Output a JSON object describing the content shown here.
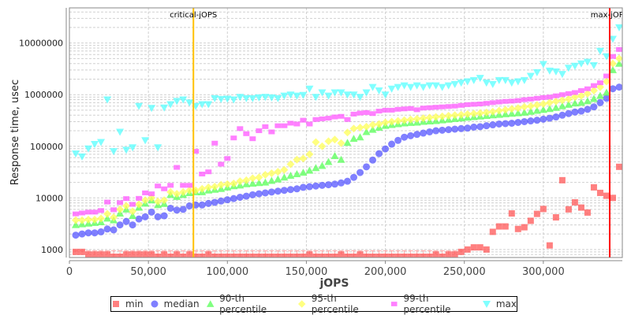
{
  "chart_data": {
    "type": "scatter",
    "xlabel": "jOPS",
    "ylabel": "Response time, usec",
    "xlim": [
      0,
      350000
    ],
    "ylim": [
      700,
      48000000
    ],
    "y_scale": "log",
    "grid": true,
    "legend_position": "bottom",
    "x_ticks": [
      "0",
      "50,000",
      "100,000",
      "150,000",
      "200,000",
      "250,000",
      "300,000"
    ],
    "x_tick_values": [
      0,
      50000,
      100000,
      150000,
      200000,
      250000,
      300000
    ],
    "y_ticks": [
      "1000",
      "10000",
      "100000",
      "1000000",
      "10000000"
    ],
    "y_tick_values": [
      1000,
      10000,
      100000,
      1000000,
      10000000
    ],
    "annotations": [
      {
        "label": "critical-jOPS",
        "x": 78500,
        "color": "#ffc000"
      },
      {
        "label": "max-jOPS",
        "x": 342000,
        "color": "#ff0000"
      }
    ],
    "x": [
      4000,
      8000,
      12000,
      16000,
      20000,
      24000,
      28000,
      32000,
      36000,
      40000,
      44000,
      48000,
      52000,
      56000,
      60000,
      64000,
      68000,
      72000,
      76000,
      80000,
      84000,
      88000,
      92000,
      96000,
      100000,
      104000,
      108000,
      112000,
      116000,
      120000,
      124000,
      128000,
      132000,
      136000,
      140000,
      144000,
      148000,
      152000,
      156000,
      160000,
      164000,
      168000,
      172000,
      176000,
      180000,
      184000,
      188000,
      192000,
      196000,
      200000,
      204000,
      208000,
      212000,
      216000,
      220000,
      224000,
      228000,
      232000,
      236000,
      240000,
      244000,
      248000,
      252000,
      256000,
      260000,
      264000,
      268000,
      272000,
      276000,
      280000,
      284000,
      288000,
      292000,
      296000,
      300000,
      304000,
      308000,
      312000,
      316000,
      320000,
      324000,
      328000,
      332000,
      336000,
      340000,
      344000,
      348000
    ],
    "series": [
      {
        "name": "min",
        "color": "#ff5555",
        "marker": "square",
        "values": [
          900,
          900,
          800,
          800,
          800,
          800,
          700,
          700,
          800,
          800,
          800,
          800,
          800,
          700,
          800,
          700,
          800,
          700,
          800,
          700,
          700,
          800,
          700,
          700,
          700,
          700,
          700,
          700,
          700,
          700,
          700,
          700,
          700,
          700,
          700,
          700,
          700,
          800,
          700,
          700,
          700,
          700,
          800,
          700,
          700,
          800,
          700,
          700,
          700,
          700,
          700,
          700,
          700,
          700,
          700,
          700,
          700,
          800,
          700,
          800,
          800,
          900,
          1000,
          1100,
          1100,
          1000,
          2200,
          2800,
          2800,
          5000,
          2500,
          2700,
          3600,
          4900,
          6100,
          1200,
          4200,
          22000,
          6000,
          8200,
          6500,
          5200,
          16000,
          12500,
          11000,
          10000,
          40000
        ]
      },
      {
        "name": "median",
        "color": "#5555ff",
        "marker": "circle",
        "values": [
          1900,
          2000,
          2100,
          2100,
          2200,
          2500,
          2400,
          3000,
          3500,
          3000,
          3900,
          4300,
          5300,
          4300,
          4500,
          6300,
          5800,
          6000,
          7000,
          7300,
          7300,
          7800,
          8200,
          8700,
          9200,
          9700,
          10300,
          10800,
          11500,
          12000,
          12500,
          13000,
          13500,
          14000,
          14500,
          15000,
          16000,
          16500,
          17000,
          17500,
          18000,
          18500,
          19500,
          21000,
          25000,
          31000,
          40000,
          54000,
          72000,
          89000,
          110000,
          130000,
          150000,
          160000,
          170000,
          180000,
          190000,
          200000,
          205000,
          210000,
          215000,
          220000,
          225000,
          235000,
          240000,
          250000,
          260000,
          270000,
          275000,
          280000,
          290000,
          300000,
          310000,
          320000,
          335000,
          350000,
          370000,
          400000,
          430000,
          460000,
          480000,
          520000,
          580000,
          700000,
          850000,
          1300000,
          1400000
        ]
      },
      {
        "name": "90-th percentile",
        "color": "#55ff55",
        "marker": "triangle-up",
        "values": [
          3000,
          3100,
          3200,
          3300,
          3400,
          4000,
          3700,
          5000,
          6000,
          4500,
          6500,
          7800,
          9000,
          7300,
          7700,
          11500,
          10500,
          11500,
          12500,
          13000,
          13000,
          14000,
          14500,
          15000,
          16000,
          17000,
          17500,
          18500,
          19000,
          19500,
          20000,
          21500,
          23000,
          25000,
          27000,
          29000,
          31000,
          34000,
          38000,
          42000,
          50000,
          65000,
          55000,
          117000,
          140000,
          150000,
          190000,
          210000,
          230000,
          250000,
          260000,
          270000,
          280000,
          285000,
          290000,
          300000,
          305000,
          310000,
          320000,
          330000,
          340000,
          350000,
          360000,
          370000,
          380000,
          390000,
          400000,
          410000,
          420000,
          430000,
          440000,
          450000,
          470000,
          490000,
          510000,
          530000,
          560000,
          600000,
          640000,
          680000,
          700000,
          750000,
          830000,
          950000,
          1100000,
          3000000,
          4000000
        ]
      },
      {
        "name": "95-th percentile",
        "color": "#ffff55",
        "marker": "diamond",
        "values": [
          3700,
          3700,
          3800,
          3800,
          4000,
          4900,
          4200,
          6000,
          7000,
          5500,
          7500,
          9000,
          10000,
          8500,
          9000,
          13000,
          12000,
          13000,
          14000,
          14000,
          15000,
          16000,
          16500,
          18000,
          18500,
          19000,
          21000,
          22000,
          24000,
          25000,
          28000,
          30000,
          32000,
          35000,
          45000,
          55000,
          58000,
          70000,
          120000,
          100000,
          125000,
          135000,
          115000,
          185000,
          220000,
          230000,
          240000,
          260000,
          270000,
          290000,
          300000,
          310000,
          320000,
          330000,
          340000,
          350000,
          360000,
          370000,
          380000,
          390000,
          400000,
          410000,
          420000,
          430000,
          440000,
          450000,
          470000,
          490000,
          510000,
          530000,
          550000,
          580000,
          600000,
          630000,
          660000,
          700000,
          740000,
          780000,
          820000,
          900000,
          950000,
          1050000,
          1200000,
          1400000,
          1800000,
          4000000,
          5000000
        ]
      },
      {
        "name": "99-th percentile",
        "color": "#ff55ff",
        "marker": "rect",
        "values": [
          4900,
          5100,
          5300,
          5300,
          5700,
          8300,
          5900,
          8100,
          9700,
          7500,
          9800,
          12500,
          12000,
          17000,
          15000,
          17500,
          39000,
          17500,
          17500,
          80000,
          29000,
          32000,
          115000,
          45000,
          58000,
          145000,
          220000,
          175000,
          140000,
          200000,
          240000,
          190000,
          250000,
          250000,
          280000,
          270000,
          320000,
          270000,
          330000,
          340000,
          350000,
          370000,
          380000,
          330000,
          420000,
          440000,
          450000,
          430000,
          480000,
          500000,
          500000,
          520000,
          530000,
          540000,
          510000,
          550000,
          560000,
          570000,
          580000,
          590000,
          600000,
          620000,
          640000,
          650000,
          660000,
          680000,
          700000,
          720000,
          740000,
          750000,
          770000,
          800000,
          820000,
          850000,
          880000,
          900000,
          950000,
          1000000,
          1050000,
          1100000,
          1200000,
          1300000,
          1500000,
          1700000,
          2300000,
          5500000,
          7500000
        ]
      },
      {
        "name": "max",
        "color": "#55ffff",
        "marker": "triangle-down",
        "values": [
          72000,
          63000,
          90000,
          110000,
          120000,
          800000,
          80000,
          190000,
          85000,
          95000,
          600000,
          130000,
          550000,
          95000,
          560000,
          650000,
          750000,
          800000,
          700000,
          600000,
          650000,
          650000,
          850000,
          820000,
          830000,
          800000,
          900000,
          850000,
          850000,
          880000,
          900000,
          880000,
          850000,
          950000,
          1000000,
          950000,
          980000,
          1300000,
          900000,
          1100000,
          950000,
          1100000,
          1100000,
          1000000,
          1000000,
          900000,
          1100000,
          1400000,
          1200000,
          1000000,
          1300000,
          1400000,
          1500000,
          1400000,
          1500000,
          1400000,
          1500000,
          1500000,
          1400000,
          1500000,
          1600000,
          1700000,
          1800000,
          1900000,
          2100000,
          1700000,
          1600000,
          1900000,
          1900000,
          1700000,
          1800000,
          1900000,
          2300000,
          2700000,
          3900000,
          2900000,
          2800000,
          2500000,
          3300000,
          3600000,
          4000000,
          4300000,
          3700000,
          7000000,
          5500000,
          12000000,
          20000000
        ]
      }
    ]
  }
}
